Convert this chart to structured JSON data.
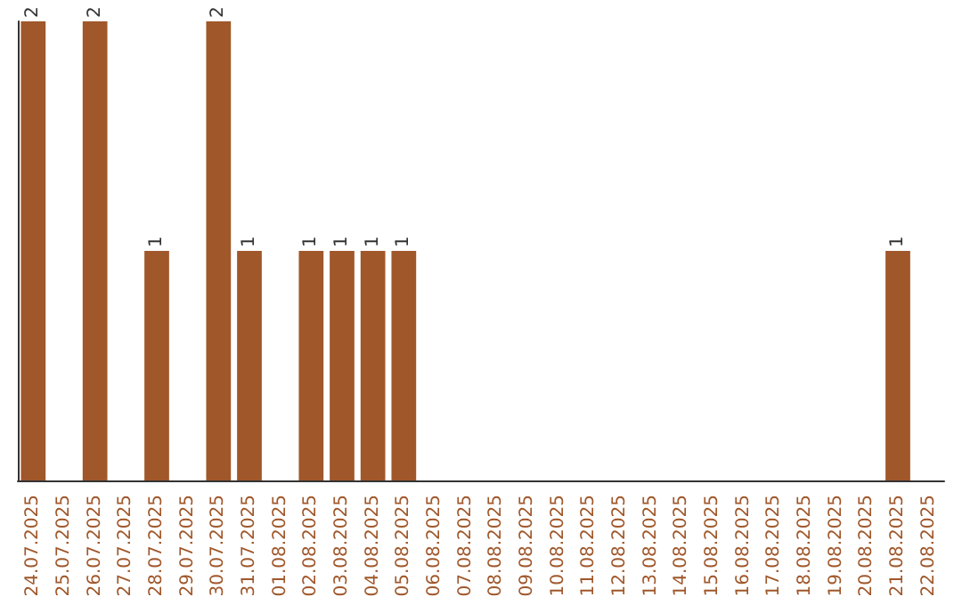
{
  "chart_data": {
    "type": "bar",
    "categories": [
      "24.07.2025",
      "25.07.2025",
      "26.07.2025",
      "27.07.2025",
      "28.07.2025",
      "29.07.2025",
      "30.07.2025",
      "31.07.2025",
      "01.08.2025",
      "02.08.2025",
      "03.08.2025",
      "04.08.2025",
      "05.08.2025",
      "06.08.2025",
      "07.08.2025",
      "08.08.2025",
      "09.08.2025",
      "10.08.2025",
      "11.08.2025",
      "12.08.2025",
      "13.08.2025",
      "14.08.2025",
      "15.08.2025",
      "16.08.2025",
      "17.08.2025",
      "18.08.2025",
      "19.08.2025",
      "20.08.2025",
      "21.08.2025",
      "22.08.2025"
    ],
    "values": [
      2,
      0,
      2,
      0,
      1,
      0,
      2,
      1,
      0,
      1,
      1,
      1,
      1,
      0,
      0,
      0,
      0,
      0,
      0,
      0,
      0,
      0,
      0,
      0,
      0,
      0,
      0,
      0,
      1,
      0
    ],
    "value_labels": [
      "2",
      null,
      "2",
      null,
      "1",
      null,
      "2",
      "1",
      null,
      "1",
      "1",
      "1",
      "1",
      null,
      null,
      null,
      null,
      null,
      null,
      null,
      null,
      null,
      null,
      null,
      null,
      null,
      null,
      null,
      "1",
      null
    ],
    "color": "#a0572a",
    "tick_labels": "x",
    "grid": false
  }
}
